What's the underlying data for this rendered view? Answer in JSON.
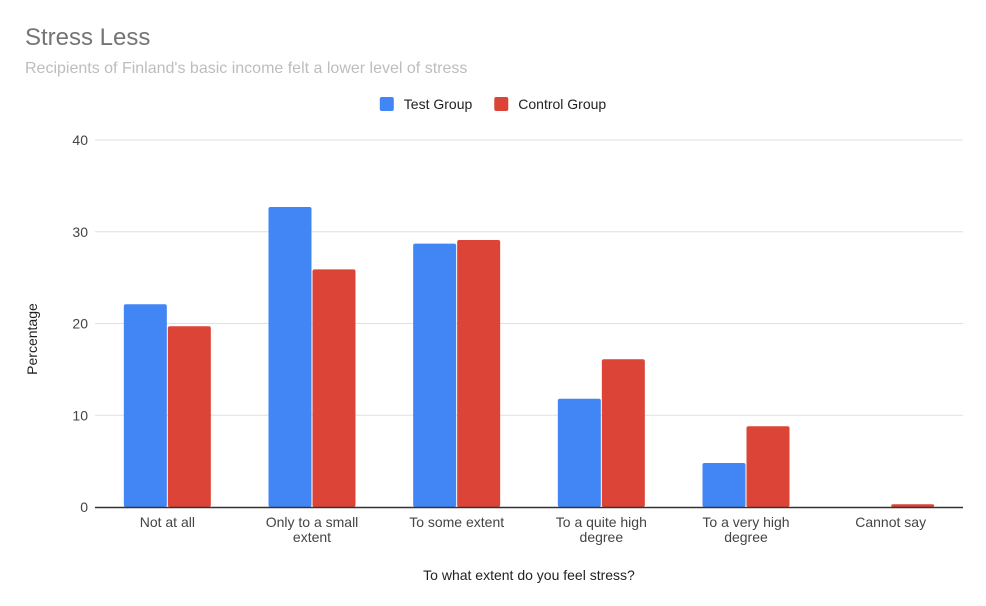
{
  "chart_data": {
    "type": "bar",
    "title": "Stress Less",
    "subtitle": "Recipients of Finland's basic income felt a lower level of stress",
    "xlabel": "To what extent do you feel stress?",
    "ylabel": "Percentage",
    "ylim": [
      0,
      40
    ],
    "yticks": [
      0,
      10,
      20,
      30,
      40
    ],
    "grid": true,
    "legend_position": "top",
    "categories": [
      [
        "Not at all"
      ],
      [
        "Only to a small",
        "extent"
      ],
      [
        "To some extent"
      ],
      [
        "To a quite high",
        "degree"
      ],
      [
        "To a very high",
        "degree"
      ],
      [
        "Cannot say"
      ]
    ],
    "series": [
      {
        "name": "Test Group",
        "color": "#4285f4",
        "values": [
          22.1,
          32.7,
          28.7,
          11.8,
          4.8,
          0.0
        ]
      },
      {
        "name": "Control Group",
        "color": "#db4437",
        "values": [
          19.7,
          25.9,
          29.1,
          16.1,
          8.8,
          0.3
        ]
      }
    ]
  }
}
